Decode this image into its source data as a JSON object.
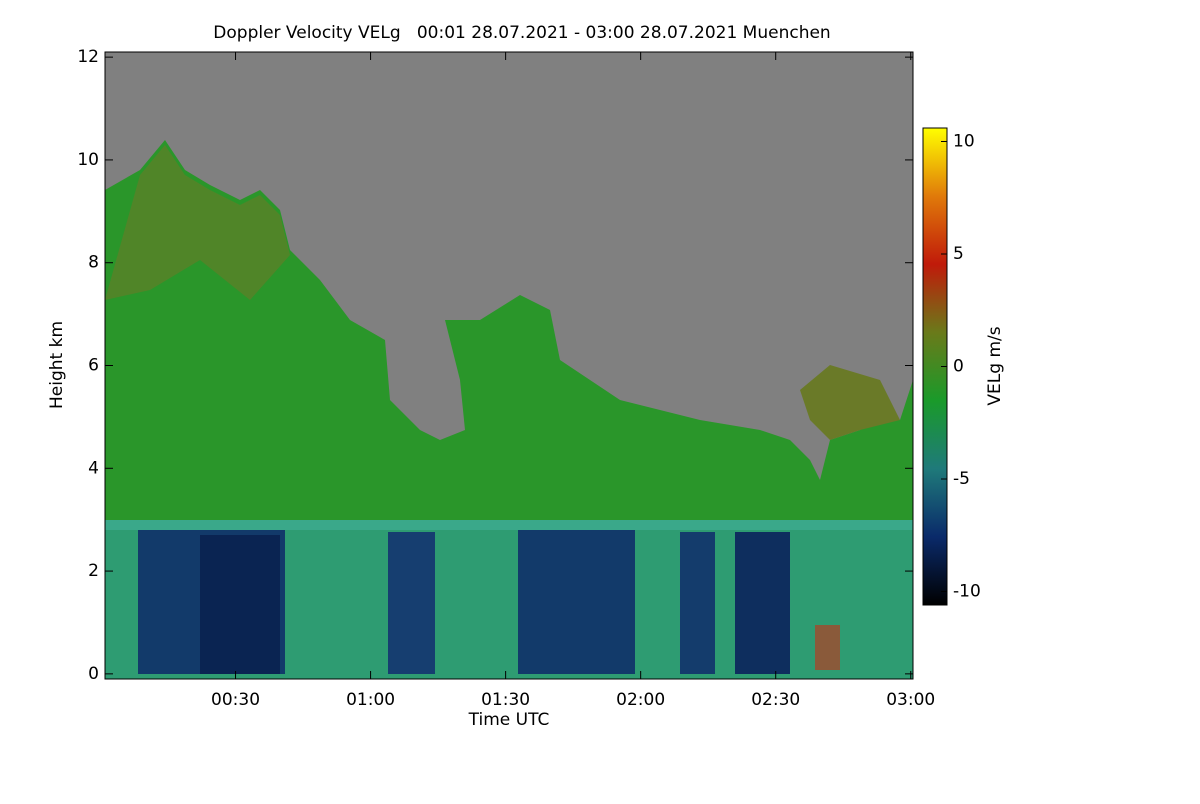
{
  "chart_data": {
    "type": "heatmap",
    "title": "Doppler Velocity VELg   00:01 28.07.2021 - 03:00 28.07.2021 Muenchen",
    "x_label": "Time UTC",
    "y_label": "Height km",
    "colorbar_label": "VELg m/s",
    "xlim": [
      1,
      180.5
    ],
    "xticks": [
      {
        "value": 30,
        "label": "00:30"
      },
      {
        "value": 60,
        "label": "01:00"
      },
      {
        "value": 90,
        "label": "01:30"
      },
      {
        "value": 120,
        "label": "02:00"
      },
      {
        "value": 150,
        "label": "02:30"
      },
      {
        "value": 180,
        "label": "03:00"
      }
    ],
    "ylim": [
      -0.1,
      12.1
    ],
    "yticks": [
      0,
      2,
      4,
      6,
      8,
      10,
      12
    ],
    "clim": [
      -10.6,
      10.6
    ],
    "cticks": [
      -10,
      -5,
      0,
      5,
      10
    ],
    "colormap": [
      "#000000",
      "#0a2a6a",
      "#1f7a7a",
      "#1a9a2a",
      "#6a7a1a",
      "#c01a0a",
      "#e07a0a",
      "#ffff00"
    ]
  }
}
